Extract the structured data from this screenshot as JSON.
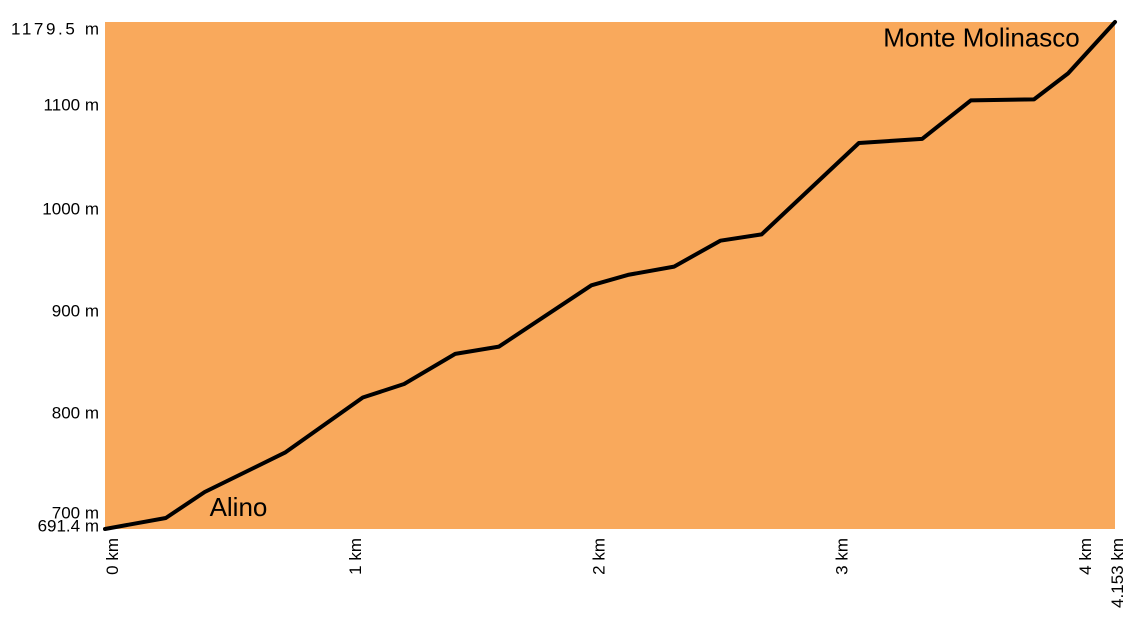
{
  "chart_data": {
    "type": "area",
    "title": "",
    "xlabel": "",
    "ylabel": "",
    "x_unit": "km",
    "y_unit": "m",
    "xlim": [
      0,
      4.153
    ],
    "ylim": [
      691.4,
      1179.5
    ],
    "x_tick_labels": [
      "0 km",
      "1 km",
      "2 km",
      "3 km",
      "4 km",
      "4.153 km"
    ],
    "y_tick_labels": [
      "1179.5 m",
      "1100 m",
      "1000 m",
      "900 m",
      "800 m",
      "700 m",
      "691.4 m"
    ],
    "grid": false,
    "legend": "none",
    "annotations": [
      {
        "text": "Alino",
        "x": 0.43,
        "y": 704
      },
      {
        "text": "Monte Molinasco",
        "x": 3.2,
        "y": 1156
      }
    ],
    "series": [
      {
        "x": [
          0,
          0.25,
          0.41,
          0.74,
          1.06,
          1.23,
          1.44,
          1.62,
          2.0,
          2.15,
          2.34,
          2.53,
          2.7,
          3.1,
          3.36,
          3.56,
          3.82,
          3.96,
          4.153
        ],
        "values": [
          691.4,
          702,
          727,
          765,
          818,
          831,
          860,
          867,
          926,
          936,
          944,
          969,
          975,
          1063,
          1067,
          1104,
          1105,
          1130,
          1179.5
        ]
      }
    ]
  },
  "colors": {
    "plot_fill": "#F9A95C",
    "line": "#000000",
    "text": "#000000",
    "background": "#FFFFFF"
  }
}
